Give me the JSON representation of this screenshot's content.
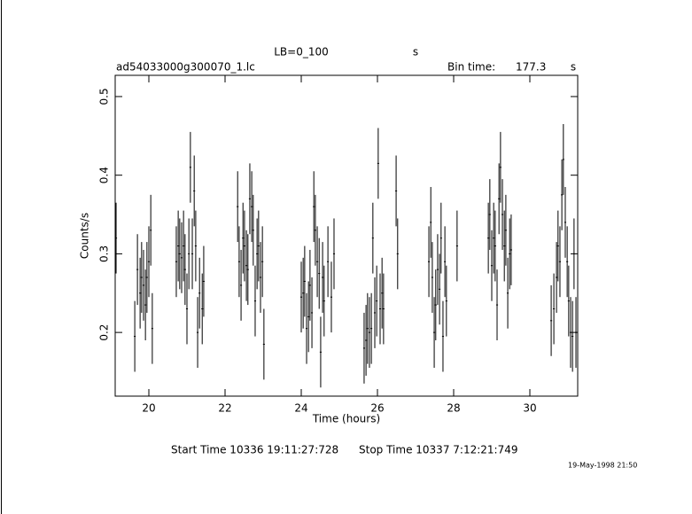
{
  "chart_data": {
    "type": "errorbar",
    "header_left": "LB=0_100",
    "header_unit": "s",
    "title": "ad54033000g300070_1.lc",
    "bin_label": "Bin time:",
    "bin_time": 177.3,
    "bin_unit": "s",
    "ylabel": "Counts/s",
    "xlabel": "Time (hours)",
    "start_time": "Start Time 10336 19:11:27:728",
    "stop_time": "Stop Time 10337  7:12:21:749",
    "date_stamp": "19-May-1998 21:50",
    "xlim": [
      19.116,
      31.256
    ],
    "ylim": [
      0.119,
      0.527
    ],
    "xticks": [
      20,
      22,
      24,
      26,
      28,
      30
    ],
    "yticks": [
      0.2,
      0.3,
      0.4,
      0.5
    ],
    "yerr": 0.045,
    "color": "#000000",
    "series": [
      {
        "x": [
          19.14,
          19.63,
          19.7,
          19.77,
          19.81,
          19.86,
          19.91,
          19.95,
          20.0,
          20.05,
          20.09,
          20.72,
          20.77,
          20.81,
          20.86,
          20.91,
          20.95,
          21.0,
          21.05,
          21.09,
          21.14,
          21.19,
          21.23,
          21.28,
          21.33,
          21.4,
          21.44,
          22.33,
          22.37,
          22.42,
          22.47,
          22.51,
          22.56,
          22.6,
          22.65,
          22.7,
          22.74,
          22.79,
          22.84,
          22.88,
          22.93,
          22.98,
          23.02,
          24.0,
          24.05,
          24.09,
          24.14,
          24.19,
          24.23,
          24.28,
          24.33,
          24.37,
          24.42,
          24.47,
          24.51,
          24.56,
          24.6,
          24.7,
          24.79,
          24.86,
          25.65,
          25.7,
          25.74,
          25.79,
          25.84,
          25.88,
          25.93,
          25.98,
          26.02,
          26.07,
          26.12,
          26.16,
          26.49,
          26.53,
          27.35,
          27.4,
          27.44,
          27.49,
          27.53,
          27.58,
          27.63,
          27.67,
          27.72,
          27.77,
          27.81,
          28.09,
          28.91,
          28.95,
          29.0,
          29.05,
          29.09,
          29.14,
          29.19,
          29.23,
          29.28,
          29.33,
          29.37,
          29.42,
          29.47,
          29.51,
          30.56,
          30.63,
          30.7,
          30.74,
          30.79,
          30.84,
          30.88,
          30.93,
          30.98,
          31.02,
          31.07,
          31.12,
          31.16,
          31.21
        ],
        "values": [
          0.32,
          0.195,
          0.28,
          0.25,
          0.27,
          0.26,
          0.235,
          0.27,
          0.29,
          0.33,
          0.205,
          0.29,
          0.31,
          0.3,
          0.295,
          0.31,
          0.28,
          0.23,
          0.3,
          0.41,
          0.3,
          0.38,
          0.31,
          0.2,
          0.25,
          0.23,
          0.265,
          0.36,
          0.29,
          0.26,
          0.32,
          0.31,
          0.285,
          0.28,
          0.37,
          0.36,
          0.33,
          0.24,
          0.3,
          0.31,
          0.27,
          0.29,
          0.185,
          0.245,
          0.25,
          0.265,
          0.205,
          0.22,
          0.26,
          0.225,
          0.36,
          0.33,
          0.29,
          0.275,
          0.175,
          0.27,
          0.24,
          0.29,
          0.245,
          0.3,
          0.18,
          0.19,
          0.205,
          0.2,
          0.205,
          0.32,
          0.225,
          0.24,
          0.415,
          0.23,
          0.25,
          0.23,
          0.38,
          0.3,
          0.29,
          0.34,
          0.27,
          0.2,
          0.235,
          0.28,
          0.255,
          0.32,
          0.195,
          0.29,
          0.24,
          0.31,
          0.32,
          0.35,
          0.285,
          0.32,
          0.31,
          0.235,
          0.37,
          0.41,
          0.35,
          0.31,
          0.33,
          0.25,
          0.3,
          0.305,
          0.215,
          0.23,
          0.27,
          0.31,
          0.29,
          0.375,
          0.42,
          0.34,
          0.29,
          0.24,
          0.2,
          0.195,
          0.3,
          0.2
        ]
      }
    ]
  }
}
